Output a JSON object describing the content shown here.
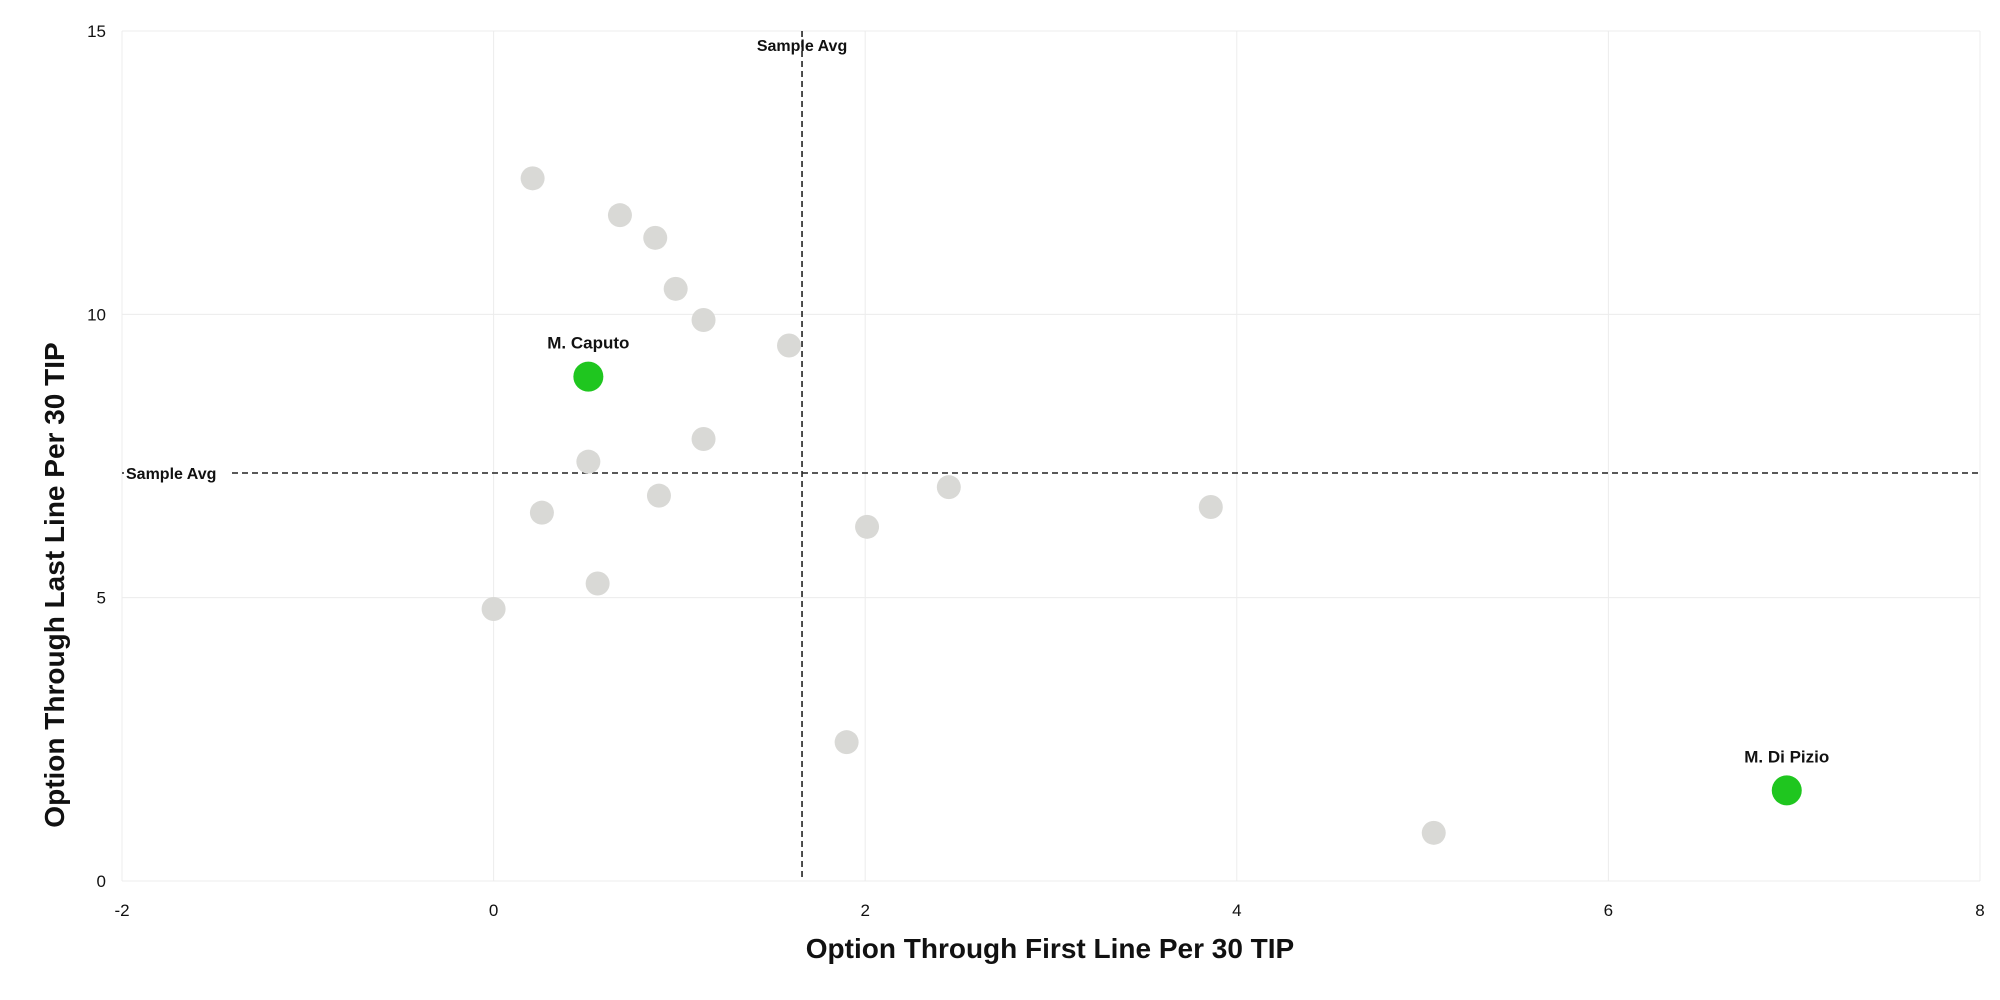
{
  "chart_data": {
    "type": "scatter",
    "xlabel": "Option Through First Line Per 30 TIP",
    "ylabel": "Option Through Last Line Per 30 TIP",
    "xlim": [
      -2,
      8
    ],
    "ylim": [
      0,
      15
    ],
    "x_ticks": [
      "-2",
      "0",
      "2",
      "4",
      "6",
      "8"
    ],
    "y_ticks": [
      "0",
      "5",
      "10",
      "15"
    ],
    "grid": true,
    "reference_lines": {
      "x": {
        "value": 1.66,
        "label": "Sample Avg"
      },
      "y": {
        "value": 7.2,
        "label": "Sample Avg"
      }
    },
    "colors": {
      "default_point": "#d9d9d6",
      "highlight_point": "#1fc61f"
    },
    "points": [
      {
        "x": 0.21,
        "y": 12.4
      },
      {
        "x": 0.68,
        "y": 11.75
      },
      {
        "x": 0.87,
        "y": 11.35
      },
      {
        "x": 0.98,
        "y": 10.45
      },
      {
        "x": 1.13,
        "y": 9.9
      },
      {
        "x": 1.59,
        "y": 9.45
      },
      {
        "x": 1.13,
        "y": 7.8
      },
      {
        "x": 0.51,
        "y": 7.4
      },
      {
        "x": 0.89,
        "y": 6.8
      },
      {
        "x": 0.26,
        "y": 6.5
      },
      {
        "x": 2.45,
        "y": 6.95
      },
      {
        "x": 2.01,
        "y": 6.25
      },
      {
        "x": 3.86,
        "y": 6.6
      },
      {
        "x": 0.56,
        "y": 5.25
      },
      {
        "x": 0.0,
        "y": 4.8
      },
      {
        "x": 1.9,
        "y": 2.45
      },
      {
        "x": 5.06,
        "y": 0.85
      }
    ],
    "highlighted": [
      {
        "name": "M. Caputo",
        "x": 0.51,
        "y": 8.9
      },
      {
        "name": "M. Di Pizio",
        "x": 6.96,
        "y": 1.6
      }
    ]
  }
}
